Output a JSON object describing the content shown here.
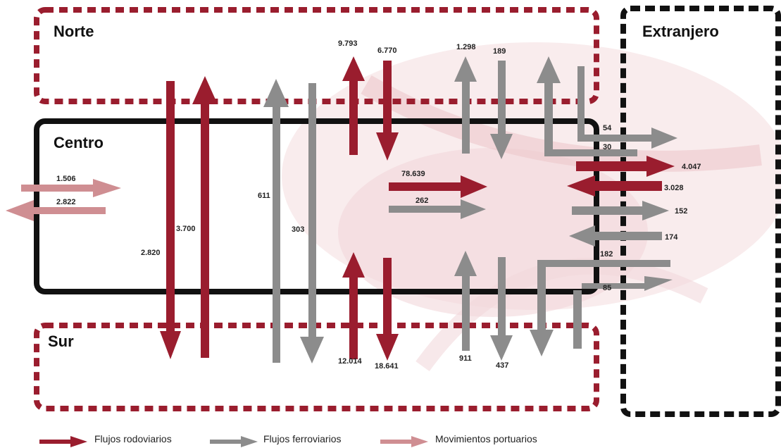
{
  "colors": {
    "road": "#9a1d2e",
    "rail": "#8c8c8c",
    "port": "#cf8e92",
    "inner_border": "#111111",
    "norte_sur_border": "#9a1d2e",
    "extranjero_border": "#111111",
    "background_swirl": "#f1d7da"
  },
  "regions": {
    "norte": "Norte",
    "centro": "Centro",
    "sur": "Sur",
    "extranjero": "Extranjero"
  },
  "flows": {
    "f1506": "1.506",
    "f2822": "2.822",
    "f2820": "2.820",
    "f3700": "3.700",
    "f611": "611",
    "f303": "303",
    "f9793": "9.793",
    "f6770": "6.770",
    "f1298": "1.298",
    "f189": "189",
    "f78639": "78.639",
    "f262": "262",
    "f12014": "12.014",
    "f18641": "18.641",
    "f911": "911",
    "f437": "437",
    "f54": "54",
    "f30": "30",
    "f4047": "4.047",
    "f3028": "3.028",
    "f152": "152",
    "f174": "174",
    "f182": "182",
    "f85": "85"
  },
  "legend": {
    "road": "Flujos rodoviarios",
    "rail": "Flujos ferroviarios",
    "port": "Movimientos portuarios"
  }
}
